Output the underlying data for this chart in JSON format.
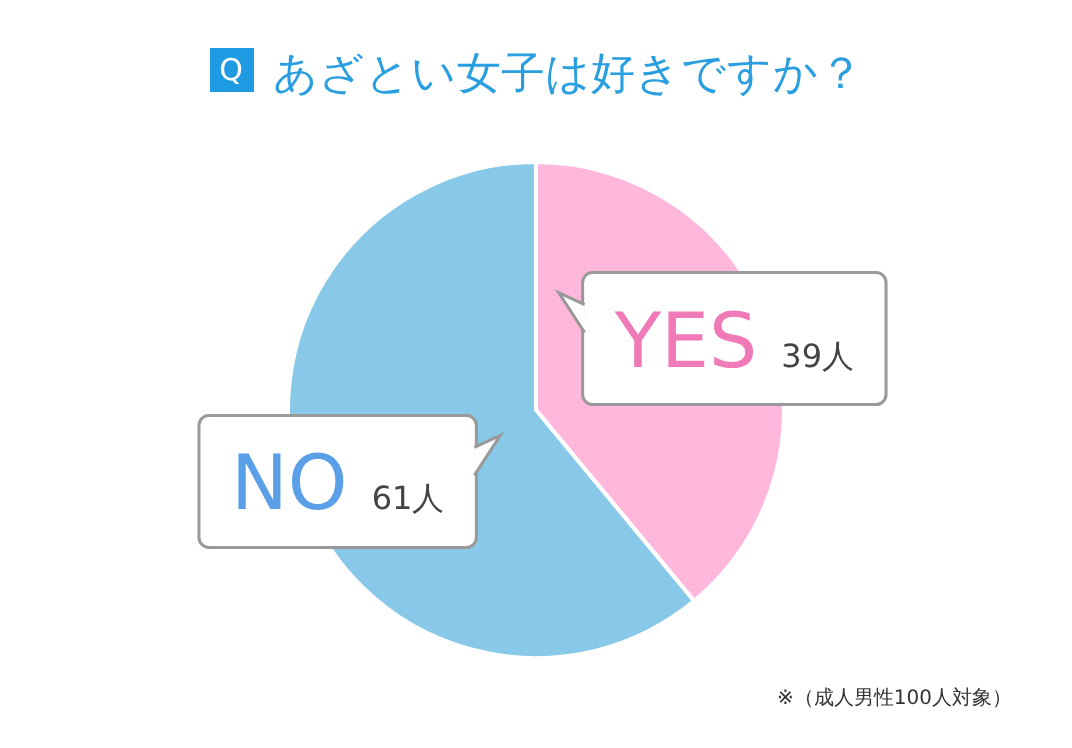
{
  "chart_data": {
    "type": "pie",
    "title": "あざとい女子は好きですか？",
    "categories": [
      "YES",
      "NO"
    ],
    "values": [
      39,
      61
    ],
    "value_labels": [
      "39人",
      "61人"
    ],
    "colors": [
      "#ffb8dc",
      "#88c8e8"
    ],
    "annotations": [
      "Q",
      "※（成人男性100人対象）"
    ]
  }
}
